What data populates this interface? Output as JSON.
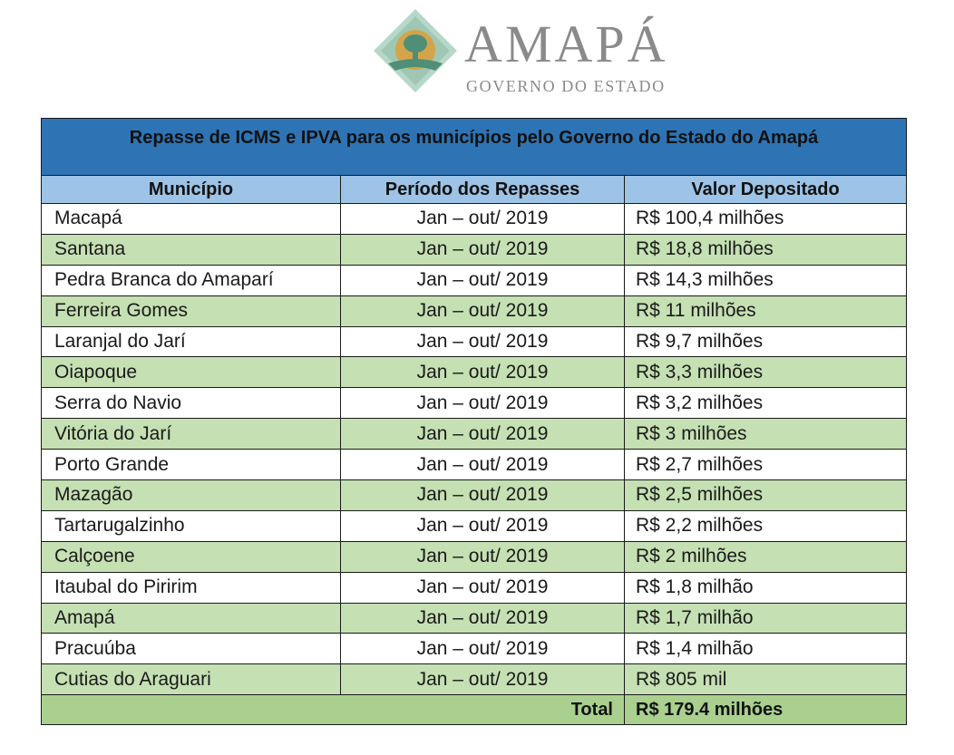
{
  "logo": {
    "title": "AMAPÁ",
    "subtitle": "GOVERNO DO ESTADO",
    "colors": {
      "diamond": "#9fc7b4",
      "sun": "#d4a44a",
      "tree": "#4f8f78",
      "text": "#8a8a8a"
    }
  },
  "table": {
    "title": "Repasse de ICMS e IPVA para os municípios pelo Governo do Estado do Amapá",
    "headers": [
      "Município",
      "Período dos Repasses",
      "Valor Depositado"
    ],
    "rows": [
      {
        "municipio": "Macapá",
        "periodo": "Jan – out/ 2019",
        "valor": "R$ 100,4 milhões"
      },
      {
        "municipio": "Santana",
        "periodo": "Jan – out/ 2019",
        "valor": "R$ 18,8 milhões"
      },
      {
        "municipio": "Pedra Branca do Amaparí",
        "periodo": "Jan – out/ 2019",
        "valor": "R$ 14,3 milhões"
      },
      {
        "municipio": "Ferreira Gomes",
        "periodo": "Jan – out/ 2019",
        "valor": "R$ 11 milhões"
      },
      {
        "municipio": "Laranjal do Jarí",
        "periodo": "Jan – out/ 2019",
        "valor": "R$ 9,7 milhões"
      },
      {
        "municipio": "Oiapoque",
        "periodo": "Jan – out/ 2019",
        "valor": "R$ 3,3 milhões"
      },
      {
        "municipio": "Serra do Navio",
        "periodo": "Jan – out/ 2019",
        "valor": "R$ 3,2 milhões"
      },
      {
        "municipio": "Vitória do Jarí",
        "periodo": "Jan – out/ 2019",
        "valor": "R$ 3 milhões"
      },
      {
        "municipio": "Porto Grande",
        "periodo": "Jan – out/ 2019",
        "valor": "R$ 2,7 milhões"
      },
      {
        "municipio": "Mazagão",
        "periodo": "Jan – out/ 2019",
        "valor": "R$ 2,5 milhões"
      },
      {
        "municipio": "Tartarugalzinho",
        "periodo": "Jan – out/ 2019",
        "valor": "R$ 2,2 milhões"
      },
      {
        "municipio": "Calçoene",
        "periodo": "Jan – out/ 2019",
        "valor": "R$ 2 milhões"
      },
      {
        "municipio": "Itaubal do Piririm",
        "periodo": "Jan – out/ 2019",
        "valor": "R$ 1,8 milhão"
      },
      {
        "municipio": "Amapá",
        "periodo": "Jan – out/ 2019",
        "valor": "R$ 1,7 milhão"
      },
      {
        "municipio": "Pracuúba",
        "periodo": "Jan – out/ 2019",
        "valor": "R$ 1,4 milhão"
      },
      {
        "municipio": "Cutias do Araguari",
        "periodo": "Jan – out/ 2019",
        "valor": "R$ 805 mil"
      }
    ],
    "total_label": "Total",
    "total_value": "R$ 179.4 milhões",
    "colors": {
      "title_bg": "#2e74b5",
      "header_bg": "#9dc3e6",
      "row_alt_bg": "#c5e0b3",
      "total_bg": "#a9d08e"
    }
  }
}
